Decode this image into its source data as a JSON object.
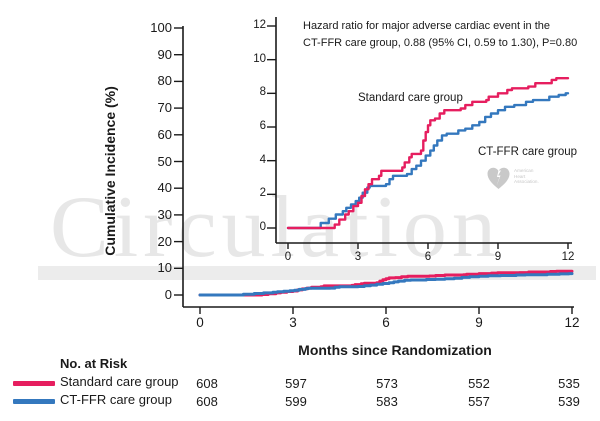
{
  "figure": {
    "watermark": "Circulation",
    "y_axis_title": "Cumulative Incidence (%)",
    "x_axis_title": "Months since Randomization"
  },
  "inset_text": {
    "hazard_line1": "Hazard ratio for major adverse cardiac event in the",
    "hazard_line2": "CT-FFR care group, 0.88 (95% CI, 0.59 to 1.30), P=0.80",
    "label_standard": "Standard care group",
    "label_ctffr": "CT-FFR care group",
    "aha_logo_line1": "American",
    "aha_logo_line2": "Heart",
    "aha_logo_line3": "Association."
  },
  "risk_table": {
    "header": "No. at Risk",
    "rows": [
      {
        "label": "Standard care group",
        "color": "#E61E5F",
        "counts": [
          "608",
          "597",
          "573",
          "552",
          "535"
        ]
      },
      {
        "label": "CT-FFR care group",
        "color": "#3478BE",
        "counts": [
          "608",
          "599",
          "583",
          "557",
          "539"
        ]
      }
    ]
  },
  "colors": {
    "standard": "#E61E5F",
    "ctffr": "#3478BE",
    "axis": "#1a1a1a",
    "watermark": "#e7e7e7",
    "aha_gray": "#c7c7c7"
  },
  "chart_data": [
    {
      "id": "main",
      "type": "line",
      "step": true,
      "grid": false,
      "title": "",
      "xlabel": "Months since Randomization",
      "ylabel": "Cumulative Incidence (%)",
      "xlim": [
        0,
        12
      ],
      "ylim": [
        0,
        100
      ],
      "xticks": [
        0,
        3,
        6,
        9,
        12
      ],
      "yticks": [
        0,
        10,
        20,
        30,
        40,
        50,
        60,
        70,
        80,
        90,
        100
      ],
      "series": [
        {
          "name": "Standard care group",
          "color": "#E61E5F",
          "points": [
            [
              0,
              0
            ],
            [
              1.9,
              0
            ],
            [
              2.0,
              0.2
            ],
            [
              2.2,
              0.5
            ],
            [
              2.45,
              0.8
            ],
            [
              2.6,
              1.0
            ],
            [
              2.8,
              1.3
            ],
            [
              3.0,
              1.5
            ],
            [
              3.15,
              1.9
            ],
            [
              3.3,
              2.3
            ],
            [
              3.45,
              2.6
            ],
            [
              3.6,
              2.9
            ],
            [
              3.9,
              3.1
            ],
            [
              4.0,
              3.4
            ],
            [
              4.9,
              3.6
            ],
            [
              5.0,
              3.9
            ],
            [
              5.2,
              4.2
            ],
            [
              5.3,
              4.4
            ],
            [
              5.7,
              4.6
            ],
            [
              5.8,
              5.2
            ],
            [
              5.9,
              5.7
            ],
            [
              6.0,
              6.1
            ],
            [
              6.1,
              6.4
            ],
            [
              6.3,
              6.5
            ],
            [
              6.5,
              6.8
            ],
            [
              6.7,
              7.0
            ],
            [
              7.4,
              7.1
            ],
            [
              7.6,
              7.3
            ],
            [
              7.9,
              7.5
            ],
            [
              8.5,
              7.6
            ],
            [
              8.6,
              7.8
            ],
            [
              9.0,
              8.0
            ],
            [
              9.4,
              8.2
            ],
            [
              9.6,
              8.3
            ],
            [
              10.3,
              8.4
            ],
            [
              10.6,
              8.6
            ],
            [
              11.3,
              8.8
            ],
            [
              11.5,
              8.9
            ],
            [
              12,
              8.9
            ]
          ]
        },
        {
          "name": "CT-FFR care group",
          "color": "#3478BE",
          "points": [
            [
              0,
              0
            ],
            [
              1.35,
              0
            ],
            [
              1.4,
              0.3
            ],
            [
              1.75,
              0.55
            ],
            [
              2.05,
              0.8
            ],
            [
              2.35,
              1.0
            ],
            [
              2.5,
              1.2
            ],
            [
              2.7,
              1.4
            ],
            [
              2.9,
              1.6
            ],
            [
              3.05,
              1.8
            ],
            [
              3.2,
              2.1
            ],
            [
              3.4,
              2.4
            ],
            [
              3.5,
              2.5
            ],
            [
              4.2,
              2.6
            ],
            [
              4.35,
              2.9
            ],
            [
              4.5,
              3.1
            ],
            [
              5.1,
              3.2
            ],
            [
              5.3,
              3.5
            ],
            [
              5.5,
              3.7
            ],
            [
              5.7,
              4.0
            ],
            [
              5.9,
              4.3
            ],
            [
              6.1,
              4.6
            ],
            [
              6.25,
              4.9
            ],
            [
              6.4,
              5.2
            ],
            [
              6.6,
              5.5
            ],
            [
              6.8,
              5.6
            ],
            [
              7.3,
              5.8
            ],
            [
              7.6,
              5.9
            ],
            [
              7.9,
              6.1
            ],
            [
              8.2,
              6.3
            ],
            [
              8.45,
              6.6
            ],
            [
              8.7,
              6.8
            ],
            [
              9.0,
              7.0
            ],
            [
              9.3,
              7.2
            ],
            [
              9.7,
              7.3
            ],
            [
              10.2,
              7.5
            ],
            [
              10.5,
              7.6
            ],
            [
              11.2,
              7.8
            ],
            [
              11.6,
              7.9
            ],
            [
              11.9,
              8.0
            ],
            [
              12,
              8.0
            ]
          ]
        }
      ],
      "at_risk": {
        "months": [
          0,
          3,
          6,
          9,
          12
        ],
        "standard": [
          608,
          597,
          573,
          552,
          535
        ],
        "ctffr": [
          608,
          599,
          583,
          557,
          539
        ]
      }
    },
    {
      "id": "inset",
      "type": "line",
      "step": true,
      "grid": false,
      "title": "",
      "xlabel": "",
      "ylabel": "",
      "xlim": [
        0,
        12
      ],
      "ylim": [
        0,
        12
      ],
      "xticks": [
        0,
        3,
        6,
        9,
        12
      ],
      "yticks": [
        0,
        2,
        4,
        6,
        8,
        10,
        12
      ],
      "annotation": "Hazard ratio for major adverse cardiac event in the CT-FFR care group, 0.88 (95% CI, 0.59 to 1.30), P=0.80",
      "series": [
        {
          "name": "Standard care group",
          "color": "#E61E5F",
          "points": [
            [
              0,
              0
            ],
            [
              1.9,
              0
            ],
            [
              2.0,
              0.2
            ],
            [
              2.2,
              0.5
            ],
            [
              2.45,
              0.8
            ],
            [
              2.6,
              1.0
            ],
            [
              2.8,
              1.3
            ],
            [
              3.0,
              1.5
            ],
            [
              3.15,
              1.9
            ],
            [
              3.3,
              2.3
            ],
            [
              3.45,
              2.6
            ],
            [
              3.6,
              2.9
            ],
            [
              3.9,
              3.1
            ],
            [
              4.0,
              3.4
            ],
            [
              4.9,
              3.6
            ],
            [
              5.0,
              3.9
            ],
            [
              5.2,
              4.2
            ],
            [
              5.3,
              4.4
            ],
            [
              5.7,
              4.6
            ],
            [
              5.8,
              5.2
            ],
            [
              5.9,
              5.7
            ],
            [
              6.0,
              6.1
            ],
            [
              6.1,
              6.4
            ],
            [
              6.3,
              6.5
            ],
            [
              6.5,
              6.8
            ],
            [
              6.7,
              7.0
            ],
            [
              7.4,
              7.1
            ],
            [
              7.6,
              7.3
            ],
            [
              7.9,
              7.5
            ],
            [
              8.5,
              7.6
            ],
            [
              8.6,
              7.8
            ],
            [
              9.0,
              8.0
            ],
            [
              9.4,
              8.2
            ],
            [
              9.6,
              8.3
            ],
            [
              10.3,
              8.4
            ],
            [
              10.6,
              8.6
            ],
            [
              11.3,
              8.8
            ],
            [
              11.5,
              8.9
            ],
            [
              12,
              8.9
            ]
          ]
        },
        {
          "name": "CT-FFR care group",
          "color": "#3478BE",
          "points": [
            [
              0,
              0
            ],
            [
              1.35,
              0
            ],
            [
              1.4,
              0.3
            ],
            [
              1.75,
              0.55
            ],
            [
              2.05,
              0.8
            ],
            [
              2.35,
              1.0
            ],
            [
              2.5,
              1.2
            ],
            [
              2.7,
              1.4
            ],
            [
              2.9,
              1.6
            ],
            [
              3.05,
              1.8
            ],
            [
              3.2,
              2.1
            ],
            [
              3.4,
              2.4
            ],
            [
              3.5,
              2.5
            ],
            [
              4.2,
              2.6
            ],
            [
              4.35,
              2.9
            ],
            [
              4.5,
              3.1
            ],
            [
              5.1,
              3.2
            ],
            [
              5.3,
              3.5
            ],
            [
              5.5,
              3.7
            ],
            [
              5.7,
              4.0
            ],
            [
              5.9,
              4.3
            ],
            [
              6.1,
              4.6
            ],
            [
              6.25,
              4.9
            ],
            [
              6.4,
              5.2
            ],
            [
              6.6,
              5.5
            ],
            [
              6.8,
              5.6
            ],
            [
              7.3,
              5.8
            ],
            [
              7.6,
              5.9
            ],
            [
              7.9,
              6.1
            ],
            [
              8.2,
              6.3
            ],
            [
              8.45,
              6.6
            ],
            [
              8.7,
              6.8
            ],
            [
              9.0,
              7.0
            ],
            [
              9.3,
              7.2
            ],
            [
              9.7,
              7.3
            ],
            [
              10.2,
              7.5
            ],
            [
              10.5,
              7.6
            ],
            [
              11.2,
              7.8
            ],
            [
              11.6,
              7.9
            ],
            [
              11.9,
              8.0
            ],
            [
              12,
              8.0
            ]
          ]
        }
      ]
    }
  ]
}
